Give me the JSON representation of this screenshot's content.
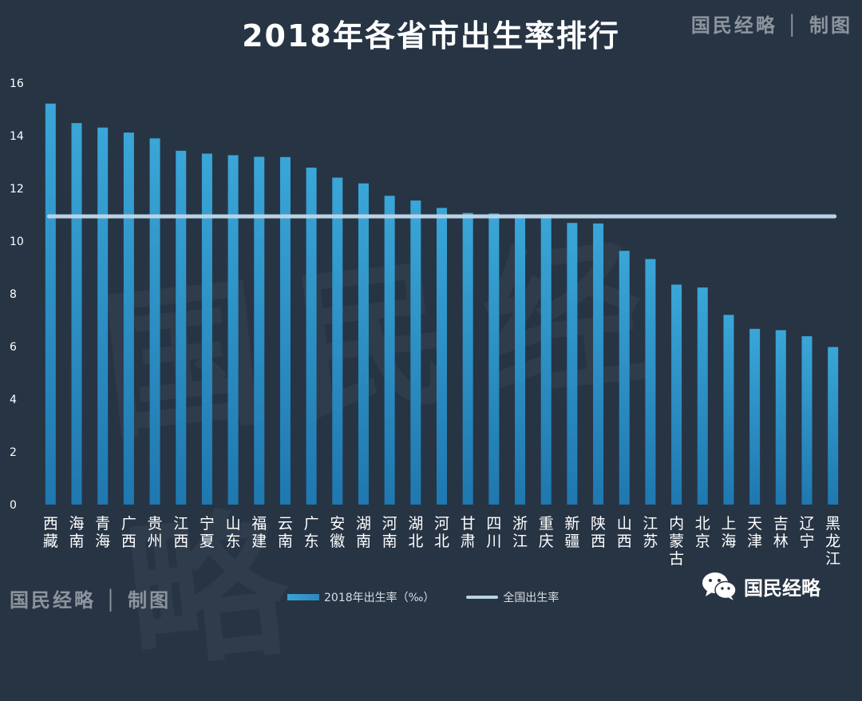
{
  "header": {
    "title": "2018年各省市出生率排行",
    "brand_top": "国民经略 │ 制图",
    "brand_bottom": "国民经略 │ 制图",
    "watermark": "国民经略"
  },
  "legend": {
    "bar_label": "2018年出生率（‰）",
    "line_label": "全国出生率"
  },
  "wechat": {
    "label": "国民经略"
  },
  "colors": {
    "bar_top": "#3aa6d8",
    "bar_bottom": "#1f78b0",
    "line": "#b9d3e4",
    "axis_text": "#ffffff"
  },
  "chart_data": {
    "type": "bar",
    "title": "2018年各省市出生率排行",
    "categories": [
      "西藏",
      "海南",
      "青海",
      "广西",
      "贵州",
      "江西",
      "宁夏",
      "山东",
      "福建",
      "云南",
      "广东",
      "安徽",
      "湖南",
      "河南",
      "湖北",
      "河北",
      "甘肃",
      "四川",
      "浙江",
      "重庆",
      "新疆",
      "陕西",
      "山西",
      "江苏",
      "内蒙古",
      "北京",
      "上海",
      "天津",
      "吉林",
      "辽宁",
      "黑龙江"
    ],
    "series": [
      {
        "name": "2018年出生率（‰）",
        "values": [
          15.22,
          14.48,
          14.31,
          14.12,
          13.9,
          13.43,
          13.32,
          13.26,
          13.2,
          13.19,
          12.79,
          12.41,
          12.19,
          11.72,
          11.54,
          11.26,
          11.07,
          11.05,
          11.02,
          11.02,
          10.69,
          10.67,
          9.63,
          9.32,
          8.35,
          8.24,
          7.2,
          6.67,
          6.62,
          6.39,
          5.98
        ]
      }
    ],
    "reference_line": {
      "name": "全国出生率",
      "value": 10.94
    },
    "ylim": [
      0,
      16
    ],
    "yticks": [
      0,
      2,
      4,
      6,
      8,
      10,
      12,
      14,
      16
    ],
    "xlabel": "",
    "ylabel": ""
  }
}
